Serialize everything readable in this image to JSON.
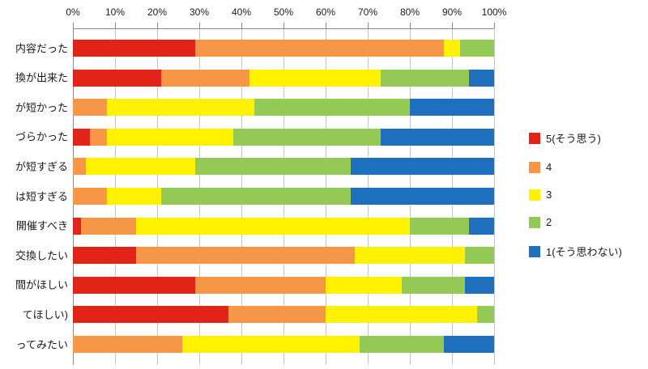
{
  "chart_data": {
    "type": "bar",
    "subtype": "horizontal-stacked-100",
    "title": "",
    "xlabel": "",
    "ylabel": "",
    "x_axis": {
      "position": "top",
      "min": 0,
      "max": 100,
      "ticks": [
        "0%",
        "10%",
        "20%",
        "30%",
        "40%",
        "50%",
        "60%",
        "70%",
        "80%",
        "90%",
        "100%"
      ]
    },
    "grid": "vertical",
    "categories": [
      "内容だった",
      "換が出来た",
      "が短かった",
      "づらかった",
      "が短すぎる",
      "は短すぎる",
      "開催すべき",
      "交換したい",
      "間がほしい",
      "てほしい)",
      "ってみたい"
    ],
    "series": [
      {
        "name": "5(そう思う)",
        "color": "#e2231a",
        "values": [
          29,
          21,
          0,
          4,
          0,
          0,
          2,
          15,
          29,
          37,
          0
        ]
      },
      {
        "name": "4",
        "color": "#f79646",
        "values": [
          59,
          21,
          8,
          4,
          3,
          8,
          13,
          52,
          31,
          23,
          26
        ]
      },
      {
        "name": "3",
        "color": "#fff100",
        "values": [
          4,
          31,
          35,
          30,
          26,
          13,
          65,
          26,
          18,
          36,
          42
        ]
      },
      {
        "name": "2",
        "color": "#93c954",
        "values": [
          8,
          21,
          37,
          35,
          37,
          45,
          14,
          7,
          15,
          4,
          20
        ]
      },
      {
        "name": "1(そう思わない)",
        "color": "#1f6fbf",
        "values": [
          0,
          6,
          20,
          27,
          34,
          34,
          6,
          0,
          7,
          0,
          12
        ]
      }
    ],
    "legend": {
      "position": "right"
    },
    "colors": {
      "background": "#ffffff",
      "gridline": "#c8c8c8",
      "axis_line": "#8a8a8a",
      "text": "#1a1a1a"
    }
  }
}
